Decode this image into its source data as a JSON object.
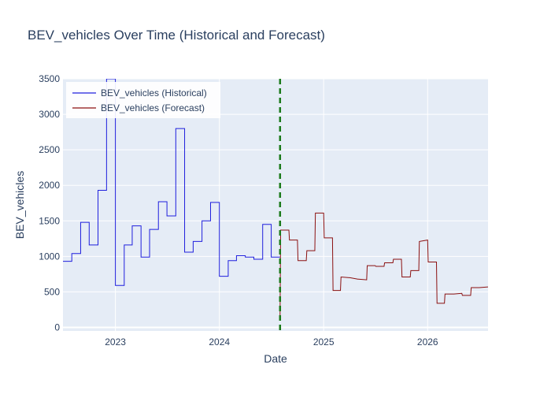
{
  "chart_data": {
    "type": "line",
    "title": "BEV_vehicles Over Time (Historical and Forecast)",
    "xlabel": "Date",
    "ylabel": "BEV_vehicles",
    "x_range": [
      "2022-07-01",
      "2026-08-01"
    ],
    "ylim": [
      -50,
      3500
    ],
    "x_ticks": [
      {
        "date": "2023-01-01",
        "label": "2023"
      },
      {
        "date": "2024-01-01",
        "label": "2024"
      },
      {
        "date": "2025-01-01",
        "label": "2025"
      },
      {
        "date": "2026-01-01",
        "label": "2026"
      }
    ],
    "y_ticks": [
      0,
      500,
      1000,
      1500,
      2000,
      2500,
      3000,
      3500
    ],
    "grid": true,
    "legend_position": "top-left",
    "vline": {
      "date": "2024-08-01",
      "color": "#1a7a1a",
      "dash": "dashed"
    },
    "series": [
      {
        "name": "BEV_vehicles (Historical)",
        "color": "#1f1fdd",
        "points": [
          [
            "2022-07-01",
            930
          ],
          [
            "2022-08-01",
            930
          ],
          [
            "2022-08-01",
            1040
          ],
          [
            "2022-09-01",
            1040
          ],
          [
            "2022-09-01",
            1480
          ],
          [
            "2022-10-01",
            1480
          ],
          [
            "2022-10-01",
            1160
          ],
          [
            "2022-11-01",
            1160
          ],
          [
            "2022-11-01",
            1930
          ],
          [
            "2022-12-01",
            1930
          ],
          [
            "2022-12-01",
            3500
          ],
          [
            "2023-01-01",
            3500
          ],
          [
            "2023-01-01",
            590
          ],
          [
            "2023-02-01",
            590
          ],
          [
            "2023-02-01",
            1160
          ],
          [
            "2023-03-01",
            1160
          ],
          [
            "2023-03-01",
            1430
          ],
          [
            "2023-04-01",
            1430
          ],
          [
            "2023-04-01",
            990
          ],
          [
            "2023-05-01",
            990
          ],
          [
            "2023-05-01",
            1380
          ],
          [
            "2023-06-01",
            1380
          ],
          [
            "2023-06-01",
            1770
          ],
          [
            "2023-07-01",
            1770
          ],
          [
            "2023-07-01",
            1570
          ],
          [
            "2023-08-01",
            1570
          ],
          [
            "2023-08-01",
            2800
          ],
          [
            "2023-09-01",
            2800
          ],
          [
            "2023-09-01",
            1060
          ],
          [
            "2023-10-01",
            1060
          ],
          [
            "2023-10-01",
            1210
          ],
          [
            "2023-11-01",
            1210
          ],
          [
            "2023-11-01",
            1500
          ],
          [
            "2023-12-01",
            1500
          ],
          [
            "2023-12-01",
            1760
          ],
          [
            "2024-01-01",
            1760
          ],
          [
            "2024-01-01",
            720
          ],
          [
            "2024-02-01",
            720
          ],
          [
            "2024-02-01",
            940
          ],
          [
            "2024-03-01",
            940
          ],
          [
            "2024-03-01",
            1010
          ],
          [
            "2024-04-01",
            1010
          ],
          [
            "2024-04-01",
            990
          ],
          [
            "2024-05-01",
            990
          ],
          [
            "2024-05-01",
            960
          ],
          [
            "2024-06-01",
            960
          ],
          [
            "2024-06-01",
            1450
          ],
          [
            "2024-07-01",
            1450
          ],
          [
            "2024-07-01",
            990
          ],
          [
            "2024-08-01",
            990
          ]
        ]
      },
      {
        "name": "BEV_vehicles (Forecast)",
        "color": "#8b1010",
        "points": [
          [
            "2024-08-01",
            170
          ],
          [
            "2024-08-03",
            1370
          ],
          [
            "2024-09-01",
            1370
          ],
          [
            "2024-09-03",
            1230
          ],
          [
            "2024-10-01",
            1230
          ],
          [
            "2024-10-03",
            940
          ],
          [
            "2024-11-01",
            940
          ],
          [
            "2024-11-03",
            1080
          ],
          [
            "2024-12-01",
            1080
          ],
          [
            "2024-12-03",
            1610
          ],
          [
            "2025-01-01",
            1610
          ],
          [
            "2025-01-03",
            1260
          ],
          [
            "2025-02-01",
            1260
          ],
          [
            "2025-02-03",
            520
          ],
          [
            "2025-03-01",
            520
          ],
          [
            "2025-03-03",
            710
          ],
          [
            "2025-04-01",
            700
          ],
          [
            "2025-04-03",
            700
          ],
          [
            "2025-05-01",
            680
          ],
          [
            "2025-05-03",
            680
          ],
          [
            "2025-06-01",
            670
          ],
          [
            "2025-06-03",
            870
          ],
          [
            "2025-07-01",
            870
          ],
          [
            "2025-07-03",
            860
          ],
          [
            "2025-08-01",
            860
          ],
          [
            "2025-08-03",
            910
          ],
          [
            "2025-09-01",
            910
          ],
          [
            "2025-09-03",
            960
          ],
          [
            "2025-10-01",
            960
          ],
          [
            "2025-10-03",
            710
          ],
          [
            "2025-11-01",
            710
          ],
          [
            "2025-11-03",
            800
          ],
          [
            "2025-12-01",
            800
          ],
          [
            "2025-12-03",
            1210
          ],
          [
            "2026-01-01",
            1230
          ],
          [
            "2026-01-03",
            920
          ],
          [
            "2026-02-01",
            920
          ],
          [
            "2026-02-03",
            340
          ],
          [
            "2026-03-01",
            340
          ],
          [
            "2026-03-03",
            470
          ],
          [
            "2026-04-01",
            470
          ],
          [
            "2026-04-03",
            470
          ],
          [
            "2026-05-01",
            480
          ],
          [
            "2026-05-03",
            450
          ],
          [
            "2026-06-01",
            450
          ],
          [
            "2026-06-03",
            560
          ],
          [
            "2026-07-01",
            560
          ],
          [
            "2026-08-01",
            570
          ]
        ]
      }
    ]
  }
}
